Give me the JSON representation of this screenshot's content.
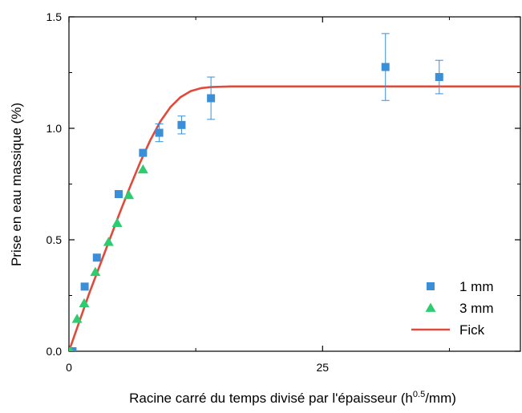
{
  "chart_data": {
    "type": "scatter",
    "title": "",
    "xlabel": "Racine carré du temps divisé par l'épaisseur (h",
    "xlabel_sup": "0.5",
    "xlabel_suffix": "/mm)",
    "ylabel": "Prise en eau massique (%)",
    "xlim": [
      0,
      44.5
    ],
    "ylim": [
      0,
      1.5
    ],
    "x_ticks": [
      0,
      25
    ],
    "x_tick_labels": [
      "0",
      "25"
    ],
    "x_minor_ticks": [
      12.5,
      37.5
    ],
    "y_ticks": [
      0.0,
      0.5,
      1.0,
      1.5
    ],
    "y_tick_labels": [
      "0.0",
      "0.5",
      "1.0",
      "1.5"
    ],
    "y_minor_ticks": [
      0.25,
      0.75,
      1.25
    ],
    "grid": false,
    "legend_position": "bottom-right",
    "series": [
      {
        "name": "1 mm",
        "marker": "square",
        "color": "#3a8fd8",
        "points": [
          {
            "x": 0.35,
            "y": 0.0
          },
          {
            "x": 1.55,
            "y": 0.29
          },
          {
            "x": 2.75,
            "y": 0.42
          },
          {
            "x": 4.9,
            "y": 0.705
          },
          {
            "x": 7.3,
            "y": 0.89
          },
          {
            "x": 8.9,
            "y": 0.98,
            "err": 0.04
          },
          {
            "x": 11.1,
            "y": 1.015,
            "err": 0.04
          },
          {
            "x": 14.0,
            "y": 1.135,
            "err": 0.095
          },
          {
            "x": 31.2,
            "y": 1.275,
            "err": 0.15
          },
          {
            "x": 36.5,
            "y": 1.23,
            "err": 0.075
          }
        ]
      },
      {
        "name": "3 mm",
        "marker": "triangle",
        "color": "#2ecc71",
        "points": [
          {
            "x": 0.15,
            "y": 0.0
          },
          {
            "x": 0.8,
            "y": 0.145
          },
          {
            "x": 1.5,
            "y": 0.215
          },
          {
            "x": 2.6,
            "y": 0.355
          },
          {
            "x": 3.9,
            "y": 0.49
          },
          {
            "x": 4.75,
            "y": 0.575
          },
          {
            "x": 5.9,
            "y": 0.7
          },
          {
            "x": 7.3,
            "y": 0.815
          }
        ]
      },
      {
        "name": "Fick",
        "marker": "line",
        "color": "#e04a3a",
        "points": [
          {
            "x": 0,
            "y": 0.0
          },
          {
            "x": 1,
            "y": 0.13
          },
          {
            "x": 2,
            "y": 0.26
          },
          {
            "x": 3,
            "y": 0.38
          },
          {
            "x": 4,
            "y": 0.5
          },
          {
            "x": 5,
            "y": 0.62
          },
          {
            "x": 6,
            "y": 0.735
          },
          {
            "x": 7,
            "y": 0.845
          },
          {
            "x": 8,
            "y": 0.945
          },
          {
            "x": 9,
            "y": 1.03
          },
          {
            "x": 10,
            "y": 1.095
          },
          {
            "x": 11,
            "y": 1.14
          },
          {
            "x": 12,
            "y": 1.167
          },
          {
            "x": 13,
            "y": 1.18
          },
          {
            "x": 14,
            "y": 1.185
          },
          {
            "x": 16,
            "y": 1.188
          },
          {
            "x": 20,
            "y": 1.188
          },
          {
            "x": 44.5,
            "y": 1.188
          }
        ]
      }
    ]
  }
}
